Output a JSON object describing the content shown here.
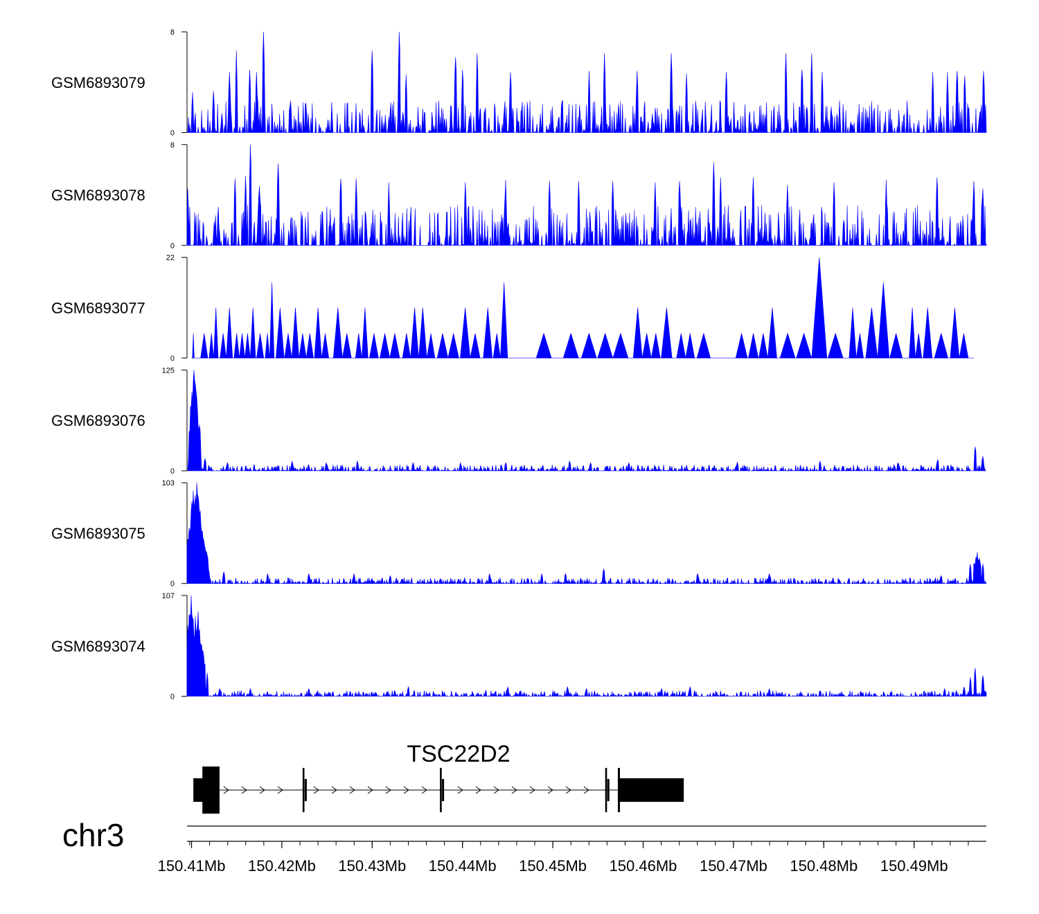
{
  "chart_data": {
    "type": "area",
    "chromosome": "chr3",
    "xlim": [
      150.4095,
      150.498
    ],
    "x_ticks": [
      150.41,
      150.42,
      150.43,
      150.44,
      150.45,
      150.46,
      150.47,
      150.48,
      150.49
    ],
    "x_tick_labels": [
      "150.41Mb",
      "150.42Mb",
      "150.43Mb",
      "150.44Mb",
      "150.45Mb",
      "150.46Mb",
      "150.47Mb",
      "150.48Mb",
      "150.49Mb"
    ],
    "color": "#0000ff",
    "tracks": [
      {
        "name": "GSM6893079",
        "ymax": 8,
        "ymin": 0,
        "ymax_label": "8",
        "ymin_label": "0",
        "profile": "noise",
        "base": 1.6,
        "seed": 79,
        "peaks": [
          [
            150.4101,
            3.2
          ],
          [
            150.4124,
            3.3
          ],
          [
            150.4142,
            4.8
          ],
          [
            150.415,
            6.5
          ],
          [
            150.4164,
            5.0
          ],
          [
            150.4172,
            4.8
          ],
          [
            150.418,
            8.0
          ],
          [
            150.43,
            6.5
          ],
          [
            150.433,
            8.0
          ],
          [
            150.4338,
            4.6
          ],
          [
            150.4392,
            6.0
          ],
          [
            150.44,
            5.0
          ],
          [
            150.4416,
            6.3
          ],
          [
            150.4453,
            4.8
          ],
          [
            150.454,
            4.9
          ],
          [
            150.4557,
            6.3
          ],
          [
            150.4593,
            4.9
          ],
          [
            150.4631,
            6.3
          ],
          [
            150.4648,
            4.7
          ],
          [
            150.4692,
            4.8
          ],
          [
            150.4758,
            6.3
          ],
          [
            150.4776,
            5.0
          ],
          [
            150.4787,
            6.3
          ],
          [
            150.4798,
            4.8
          ],
          [
            150.4921,
            4.8
          ],
          [
            150.4937,
            4.8
          ],
          [
            150.4948,
            4.9
          ],
          [
            150.4956,
            4.5
          ],
          [
            150.4977,
            4.9
          ]
        ]
      },
      {
        "name": "GSM6893078",
        "ymax": 8,
        "ymin": 0,
        "ymax_label": "8",
        "ymin_label": "0",
        "profile": "noise",
        "base": 2.0,
        "seed": 78,
        "peaks": [
          [
            150.4096,
            4.5
          ],
          [
            150.4148,
            5.3
          ],
          [
            150.416,
            5.5
          ],
          [
            150.4165,
            8.0
          ],
          [
            150.4175,
            4.7
          ],
          [
            150.4196,
            6.5
          ],
          [
            150.4265,
            5.3
          ],
          [
            150.4282,
            5.3
          ],
          [
            150.4318,
            5.0
          ],
          [
            150.4403,
            5.0
          ],
          [
            150.4448,
            5.2
          ],
          [
            150.4496,
            5.1
          ],
          [
            150.4529,
            5.1
          ],
          [
            150.4566,
            5.1
          ],
          [
            150.4613,
            5.0
          ],
          [
            150.464,
            5.1
          ],
          [
            150.4678,
            6.6
          ],
          [
            150.4686,
            5.4
          ],
          [
            150.4722,
            5.4
          ],
          [
            150.476,
            4.8
          ],
          [
            150.4811,
            5.0
          ],
          [
            150.4869,
            5.2
          ],
          [
            150.4925,
            5.4
          ],
          [
            150.4966,
            5.1
          ],
          [
            150.4976,
            4.5
          ]
        ]
      },
      {
        "name": "GSM6893077",
        "ymax": 22,
        "ymin": 0,
        "ymax_label": "22",
        "ymin_label": "0",
        "profile": "spikes",
        "start": 150.41,
        "end": 150.4966,
        "peaks": [
          [
            150.4102,
            5.4
          ],
          [
            150.4114,
            5.4
          ],
          [
            150.4122,
            5.4
          ],
          [
            150.4127,
            11.0
          ],
          [
            150.4135,
            5.4
          ],
          [
            150.4142,
            11.0
          ],
          [
            150.415,
            5.4
          ],
          [
            150.4156,
            5.4
          ],
          [
            150.4162,
            5.4
          ],
          [
            150.4168,
            11.0
          ],
          [
            150.4176,
            5.4
          ],
          [
            150.4184,
            5.4
          ],
          [
            150.4189,
            16.5
          ],
          [
            150.4198,
            11.0
          ],
          [
            150.4207,
            5.4
          ],
          [
            150.4215,
            11.0
          ],
          [
            150.4223,
            5.4
          ],
          [
            150.4231,
            5.4
          ],
          [
            150.424,
            11.0
          ],
          [
            150.4248,
            5.4
          ],
          [
            150.4262,
            11.0
          ],
          [
            150.4272,
            5.4
          ],
          [
            150.4285,
            5.4
          ],
          [
            150.4292,
            11.0
          ],
          [
            150.4302,
            5.4
          ],
          [
            150.4314,
            5.4
          ],
          [
            150.4325,
            5.4
          ],
          [
            150.4338,
            5.4
          ],
          [
            150.4347,
            11.0
          ],
          [
            150.4356,
            11.0
          ],
          [
            150.4365,
            5.4
          ],
          [
            150.4378,
            5.4
          ],
          [
            150.439,
            5.4
          ],
          [
            150.4403,
            11.0
          ],
          [
            150.4414,
            5.4
          ],
          [
            150.4428,
            11.0
          ],
          [
            150.4438,
            5.4
          ],
          [
            150.4446,
            16.5
          ],
          [
            150.449,
            5.4
          ],
          [
            150.452,
            5.4
          ],
          [
            150.454,
            5.4
          ],
          [
            150.4558,
            5.4
          ],
          [
            150.4575,
            5.4
          ],
          [
            150.4594,
            11.0
          ],
          [
            150.4604,
            5.4
          ],
          [
            150.4614,
            5.4
          ],
          [
            150.4626,
            11.0
          ],
          [
            150.4642,
            5.4
          ],
          [
            150.4652,
            5.4
          ],
          [
            150.4667,
            5.4
          ],
          [
            150.4709,
            5.4
          ],
          [
            150.4722,
            5.4
          ],
          [
            150.4733,
            5.4
          ],
          [
            150.4743,
            11.0
          ],
          [
            150.476,
            5.4
          ],
          [
            150.4778,
            5.4
          ],
          [
            150.4795,
            22.0
          ],
          [
            150.4813,
            5.4
          ],
          [
            150.4832,
            11.0
          ],
          [
            150.484,
            5.4
          ],
          [
            150.4853,
            11.0
          ],
          [
            150.4866,
            16.5
          ],
          [
            150.488,
            5.4
          ],
          [
            150.4898,
            11.0
          ],
          [
            150.4905,
            5.4
          ],
          [
            150.4915,
            11.0
          ],
          [
            150.493,
            5.4
          ],
          [
            150.4945,
            11.0
          ],
          [
            150.4955,
            5.4
          ]
        ]
      },
      {
        "name": "GSM6893076",
        "ymax": 125,
        "ymin": 0,
        "ymax_label": "125",
        "ymin_label": "0",
        "profile": "enriched",
        "base": 5.0,
        "seed": 76,
        "peaks": [
          [
            150.4097,
            20
          ],
          [
            150.4101,
            85
          ],
          [
            150.4103,
            125
          ],
          [
            150.4106,
            80
          ],
          [
            150.411,
            35
          ],
          [
            150.4115,
            15
          ],
          [
            150.414,
            10
          ],
          [
            150.4211,
            12
          ],
          [
            150.4249,
            10
          ],
          [
            150.4284,
            12
          ],
          [
            150.4345,
            10
          ],
          [
            150.4398,
            10
          ],
          [
            150.4448,
            10
          ],
          [
            150.4519,
            12
          ],
          [
            150.4542,
            10
          ],
          [
            150.4584,
            10
          ],
          [
            150.4704,
            11
          ],
          [
            150.4796,
            12
          ],
          [
            150.4882,
            10
          ],
          [
            150.4926,
            14
          ],
          [
            150.4968,
            30
          ],
          [
            150.4976,
            18
          ]
        ]
      },
      {
        "name": "GSM6893075",
        "ymax": 103,
        "ymin": 0,
        "ymax_label": "103",
        "ymin_label": "0",
        "profile": "enriched",
        "base": 4.0,
        "seed": 75,
        "peaks": [
          [
            150.4096,
            45
          ],
          [
            150.41,
            70
          ],
          [
            150.4102,
            95
          ],
          [
            150.4106,
            103
          ],
          [
            150.411,
            75
          ],
          [
            150.4114,
            40
          ],
          [
            150.4119,
            15
          ],
          [
            150.4136,
            12
          ],
          [
            150.4184,
            10
          ],
          [
            150.423,
            10
          ],
          [
            150.428,
            10
          ],
          [
            150.432,
            8
          ],
          [
            150.443,
            10
          ],
          [
            150.4488,
            10
          ],
          [
            150.4514,
            10
          ],
          [
            150.4556,
            15
          ],
          [
            150.466,
            10
          ],
          [
            150.474,
            10
          ],
          [
            150.493,
            8
          ],
          [
            150.4962,
            20
          ],
          [
            150.497,
            32
          ],
          [
            150.4976,
            20
          ]
        ]
      },
      {
        "name": "GSM6893074",
        "ymax": 107,
        "ymin": 0,
        "ymax_label": "107",
        "ymin_label": "0",
        "profile": "enriched",
        "base": 4.0,
        "seed": 74,
        "peaks": [
          [
            150.4096,
            75
          ],
          [
            150.41,
            107
          ],
          [
            150.4104,
            85
          ],
          [
            150.4107,
            90
          ],
          [
            150.4111,
            55
          ],
          [
            150.4117,
            25
          ],
          [
            150.4131,
            8
          ],
          [
            150.4165,
            8
          ],
          [
            150.423,
            8
          ],
          [
            150.434,
            10
          ],
          [
            150.445,
            10
          ],
          [
            150.4516,
            10
          ],
          [
            150.4537,
            8
          ],
          [
            150.462,
            8
          ],
          [
            150.4652,
            10
          ],
          [
            150.474,
            8
          ],
          [
            150.4934,
            8
          ],
          [
            150.4955,
            10
          ],
          [
            150.4962,
            20
          ],
          [
            150.4968,
            30
          ],
          [
            150.4976,
            22
          ]
        ]
      }
    ],
    "gene": {
      "name": "TSC22D2",
      "strand": "+",
      "start": 150.4102,
      "end": 150.4645,
      "utr_start": [
        150.4102,
        150.4121
      ],
      "exons": [
        [
          150.4112,
          150.4131
        ],
        [
          150.4223,
          150.4225
        ],
        [
          150.4375,
          150.4377
        ],
        [
          150.4558,
          150.456
        ],
        [
          150.4572,
          150.4645
        ]
      ],
      "utr_end": [
        150.4572,
        150.4645
      ]
    }
  }
}
